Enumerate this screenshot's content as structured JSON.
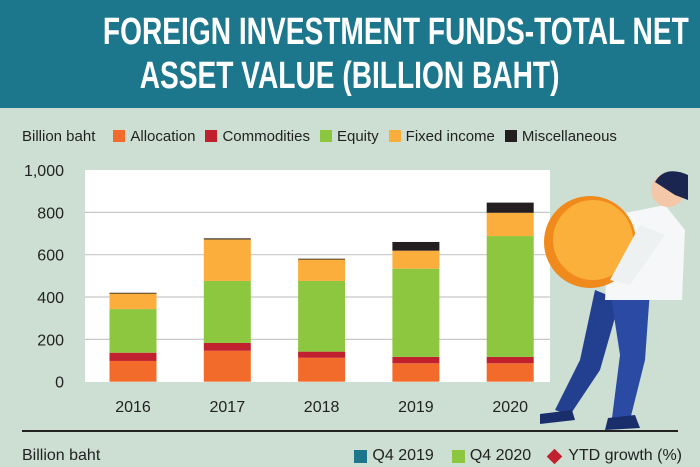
{
  "title": "FOREIGN INVESTMENT FUNDS-TOTAL NET ASSET VALUE (BILLION BAHT)",
  "title_lines": [
    "FOREIGN INVESTMENT FUNDS-TOTAL NET",
    "ASSET VALUE (BILLION BAHT)"
  ],
  "colors": {
    "header": "#1d778c",
    "background": "#cddfd2"
  },
  "chart_data": {
    "type": "bar",
    "stacked": true,
    "unit_label": "Billion baht",
    "categories": [
      "2016",
      "2017",
      "2018",
      "2019",
      "2020"
    ],
    "ylim": [
      0,
      1000
    ],
    "yticks": [
      "0",
      "200",
      "400",
      "600",
      "800",
      "1,000"
    ],
    "ytick_values": [
      0,
      200,
      400,
      600,
      800,
      1000
    ],
    "grid": true,
    "legend_position": "top",
    "series": [
      {
        "name": "Allocation",
        "color": "#f26b2a",
        "values": [
          98,
          146,
          113,
          87,
          87
        ]
      },
      {
        "name": "Commodities",
        "color": "#c1202f",
        "values": [
          39,
          37,
          29,
          30,
          30
        ]
      },
      {
        "name": "Equity",
        "color": "#8dc63f",
        "values": [
          206,
          293,
          334,
          417,
          571
        ]
      },
      {
        "name": "Fixed income",
        "color": "#fbae3c",
        "values": [
          74,
          196,
          102,
          85,
          110
        ]
      },
      {
        "name": "Miscellaneous",
        "color": "#231f20",
        "values": [
          3,
          5,
          3,
          41,
          48
        ]
      }
    ]
  },
  "second_chart_legend": {
    "unit_label": "Billion baht",
    "items": [
      {
        "name": "Q4 2019",
        "color": "#1d778c",
        "marker": "square"
      },
      {
        "name": "Q4 2020",
        "color": "#8dc63f",
        "marker": "square"
      },
      {
        "name": "YTD growth (%)",
        "color": "#c1202f",
        "marker": "diamond"
      }
    ]
  },
  "illustration": "man-carrying-gold-coin"
}
